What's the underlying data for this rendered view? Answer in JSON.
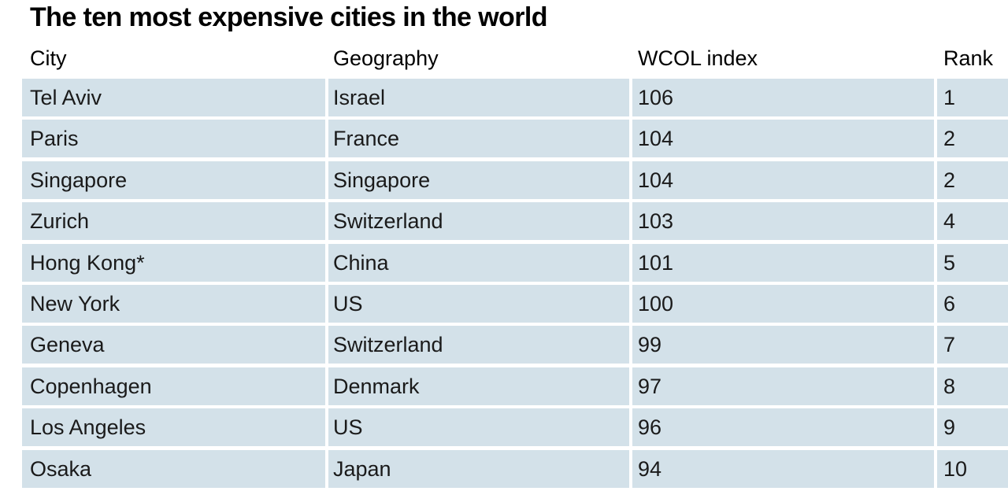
{
  "chart_data": {
    "type": "table",
    "title": "The ten most expensive cities in the world",
    "columns": [
      "City",
      "Geography",
      "WCOL index",
      "Rank"
    ],
    "rows": [
      {
        "city": "Tel Aviv",
        "geography": "Israel",
        "index": "106",
        "rank": "1"
      },
      {
        "city": "Paris",
        "geography": "France",
        "index": "104",
        "rank": "2"
      },
      {
        "city": "Singapore",
        "geography": "Singapore",
        "index": "104",
        "rank": "2"
      },
      {
        "city": "Zurich",
        "geography": "Switzerland",
        "index": "103",
        "rank": "4"
      },
      {
        "city": "Hong Kong*",
        "geography": "China",
        "index": "101",
        "rank": "5"
      },
      {
        "city": "New York",
        "geography": "US",
        "index": "100",
        "rank": "6"
      },
      {
        "city": "Geneva",
        "geography": "Switzerland",
        "index": "99",
        "rank": "7"
      },
      {
        "city": "Copenhagen",
        "geography": "Denmark",
        "index": "97",
        "rank": "8"
      },
      {
        "city": "Los Angeles",
        "geography": "US",
        "index": "96",
        "rank": "9"
      },
      {
        "city": "Osaka",
        "geography": "Japan",
        "index": "94",
        "rank": "10"
      }
    ]
  },
  "colors": {
    "row_background": "#d3e1e9",
    "separator": "#ffffff",
    "text": "#1a1a1a"
  }
}
